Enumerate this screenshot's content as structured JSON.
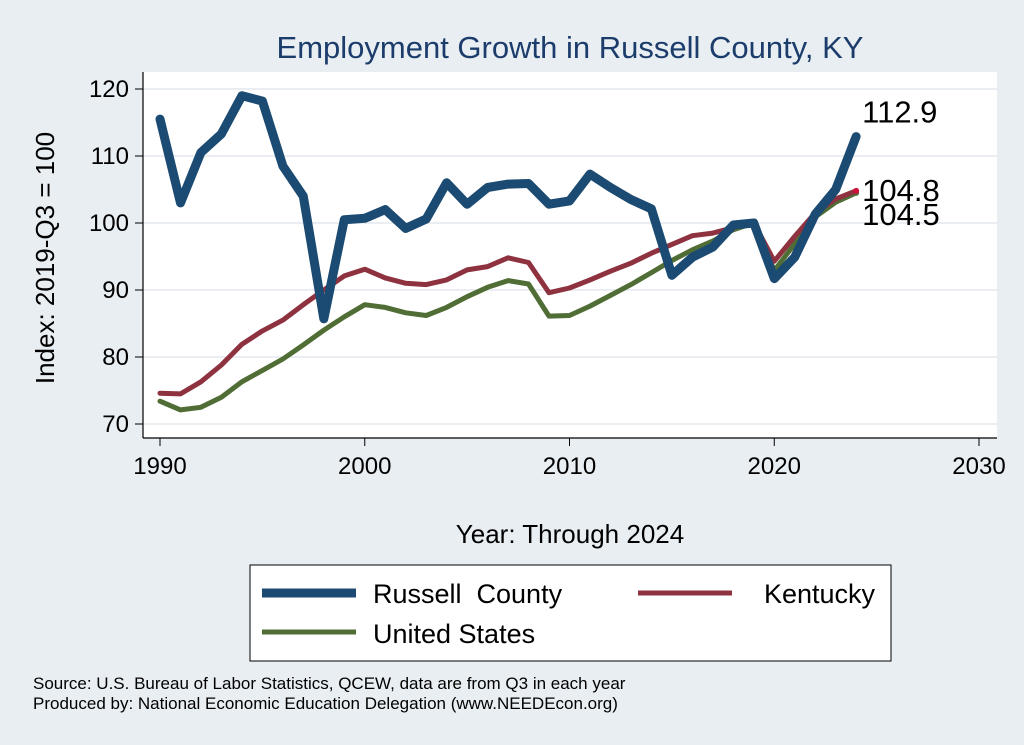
{
  "chart_data": {
    "type": "line",
    "title": "Employment Growth in Russell County, KY",
    "xlabel": "Year: Through 2024",
    "ylabel": "Index: 2019-Q3 = 100",
    "xlim": [
      1990,
      2030
    ],
    "ylim": [
      70,
      120
    ],
    "xticks": [
      "1990",
      "2000",
      "2010",
      "2020",
      "2030"
    ],
    "yticks": [
      "70",
      "80",
      "90",
      "100",
      "110",
      "120"
    ],
    "grid": true,
    "legend_position": "bottom",
    "x": [
      1990,
      1991,
      1992,
      1993,
      1994,
      1995,
      1996,
      1997,
      1998,
      1999,
      2000,
      2001,
      2002,
      2003,
      2004,
      2005,
      2006,
      2007,
      2008,
      2009,
      2010,
      2011,
      2012,
      2013,
      2014,
      2015,
      2016,
      2017,
      2018,
      2019,
      2020,
      2021,
      2022,
      2023,
      2024
    ],
    "series": [
      {
        "name": "Russell  County",
        "color": "#1b4a72",
        "end_label": "112.9",
        "values": [
          115.5,
          103,
          110.5,
          113.3,
          119,
          118.2,
          108.5,
          104,
          85.7,
          100.5,
          100.7,
          102,
          99.2,
          100.6,
          106,
          102.8,
          105.3,
          105.8,
          105.9,
          102.8,
          103.3,
          107.3,
          105.3,
          103.5,
          102.1,
          92.2,
          94.9,
          96.4,
          99.7,
          100,
          91.7,
          94.9,
          101.3,
          105,
          112.9
        ]
      },
      {
        "name": "Kentucky",
        "color": "#8e3240",
        "end_label": "104.8",
        "values": [
          74.6,
          74.5,
          76.3,
          78.8,
          81.9,
          83.9,
          85.5,
          87.8,
          90,
          92.1,
          93.1,
          91.8,
          91,
          90.8,
          91.5,
          93,
          93.5,
          94.8,
          94.1,
          89.6,
          90.3,
          91.5,
          92.8,
          94,
          95.5,
          96.8,
          98.1,
          98.5,
          99.3,
          100,
          94.3,
          98,
          101.5,
          103.6,
          104.8
        ]
      },
      {
        "name": "United States",
        "color": "#4f6d34",
        "end_label": "104.5",
        "values": [
          73.4,
          72.1,
          72.5,
          74,
          76.3,
          78,
          79.7,
          81.8,
          84,
          86,
          87.8,
          87.4,
          86.6,
          86.2,
          87.4,
          89,
          90.4,
          91.4,
          90.9,
          86.1,
          86.2,
          87.6,
          89.2,
          90.8,
          92.6,
          94.4,
          96,
          97.3,
          99,
          100,
          92.9,
          96.9,
          100.9,
          103.1,
          104.5
        ]
      }
    ],
    "notes": [
      "Source: U.S. Bureau of Labor Statistics, QCEW, data are from Q3 in each year",
      "Produced by: National Economic Education Delegation (www.NEEDEcon.org)"
    ]
  }
}
